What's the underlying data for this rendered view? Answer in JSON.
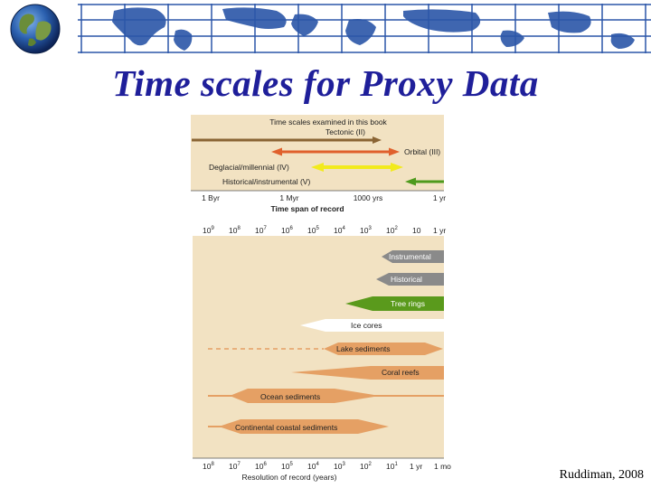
{
  "slide": {
    "title": "Time scales for Proxy Data",
    "credit": "Ruddiman, 2008"
  },
  "colors": {
    "title": "#1f1f9a",
    "panel_bg": "#f2e2c2",
    "tectonic": "#8a6434",
    "orbital": "#e0602c",
    "deglacial": "#f2ea1c",
    "historical": "#4e9a1c",
    "proxy_gray": "#8a8a8a",
    "proxy_green": "#5a9a1c",
    "proxy_white": "#ffffff",
    "proxy_orange": "#e5a064"
  },
  "top_panel": {
    "heading": "Time scales examined in this book",
    "arrows": [
      {
        "label": "Tectonic (II)",
        "key": "tectonic"
      },
      {
        "label": "Orbital (III)",
        "key": "orbital"
      },
      {
        "label": "Deglacial/millennial (IV)",
        "key": "deglacial"
      },
      {
        "label": "Historical/instrumental (V)",
        "key": "historical"
      }
    ],
    "axis_ticks": [
      "1 Byr",
      "1 Myr",
      "1000 yrs",
      "1 yr"
    ],
    "axis_label": "Time span of record"
  },
  "bottom_panel": {
    "top_ticks": [
      "10",
      "10",
      "10",
      "10",
      "10",
      "10",
      "10",
      "10",
      "10",
      "1 yr"
    ],
    "top_exponents": [
      "9",
      "8",
      "7",
      "6",
      "5",
      "4",
      "3",
      "2",
      "",
      ""
    ],
    "bottom_ticks": [
      "10",
      "10",
      "10",
      "10",
      "10",
      "10",
      "10",
      "10",
      "1 yr",
      "1 mo"
    ],
    "bottom_exponents": [
      "8",
      "7",
      "6",
      "5",
      "4",
      "3",
      "2",
      "1",
      "",
      ""
    ],
    "axis_label": "Resolution of record (years)",
    "proxies": [
      {
        "label": "Instrumental",
        "color_key": "proxy_gray"
      },
      {
        "label": "Historical",
        "color_key": "proxy_gray"
      },
      {
        "label": "Tree rings",
        "color_key": "proxy_green"
      },
      {
        "label": "Ice cores",
        "color_key": "proxy_white"
      },
      {
        "label": "Lake sediments",
        "color_key": "proxy_orange"
      },
      {
        "label": "Coral reefs",
        "color_key": "proxy_orange"
      },
      {
        "label": "Ocean sediments",
        "color_key": "proxy_orange"
      },
      {
        "label": "Continental coastal sediments",
        "color_key": "proxy_orange"
      }
    ]
  }
}
